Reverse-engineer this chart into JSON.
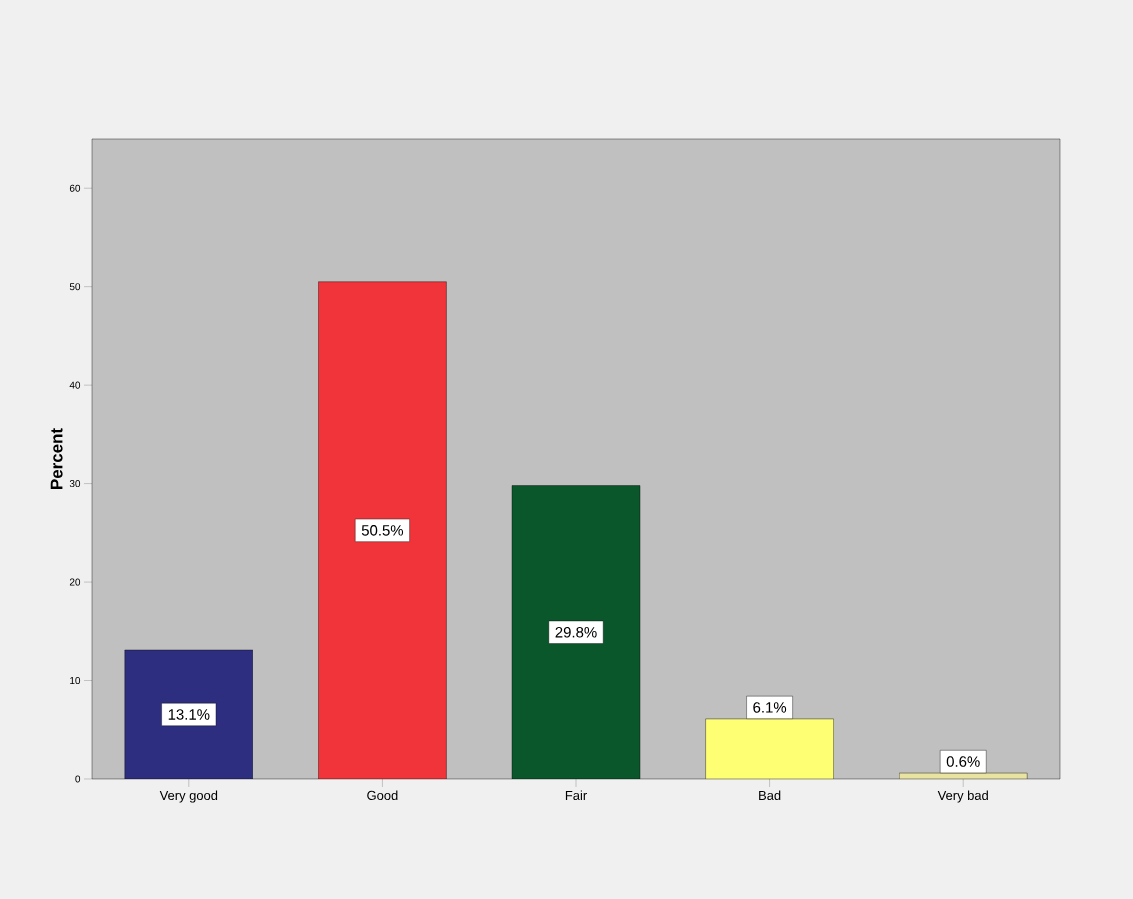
{
  "chart_data": {
    "type": "bar",
    "ylabel": "Percent",
    "categories": [
      "Very good",
      "Good",
      "Fair",
      "Bad",
      "Very bad"
    ],
    "values": [
      13.1,
      50.5,
      29.8,
      6.1,
      0.6
    ],
    "value_labels": [
      "13.1%",
      "50.5%",
      "29.8%",
      "6.1%",
      "0.6%"
    ],
    "colors": [
      "#2e2e80",
      "#f0343a",
      "#0a572c",
      "#ffff73",
      "#e8e3a0"
    ],
    "ylim": [
      0,
      65
    ],
    "yticks": [
      0,
      10,
      20,
      30,
      40,
      50,
      60
    ],
    "grid": false
  }
}
